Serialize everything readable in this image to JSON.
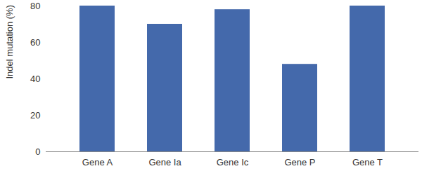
{
  "chart_data": {
    "type": "bar",
    "y_label": "Indel mutation (%)",
    "categories": [
      "Gene A",
      "Gene Ia",
      "Gene Ic",
      "Gene P",
      "Gene T"
    ],
    "values": [
      80,
      70,
      78,
      48,
      80
    ],
    "color": "#4469ab",
    "ylim": [
      0,
      80
    ],
    "yticks": [
      0,
      20,
      40,
      60,
      80
    ],
    "grid": false
  }
}
